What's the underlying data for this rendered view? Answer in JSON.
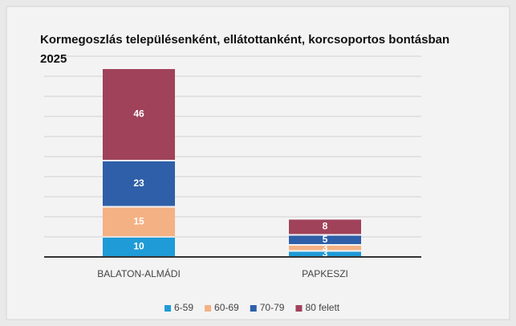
{
  "chart_data": {
    "type": "stacked-bar",
    "title": "Kormegoszlás településenként, ellátottanként, korcsoportos bontásban    2025",
    "categories": [
      "BALATON-ALMÁDI",
      "PAPKESZI"
    ],
    "series": [
      {
        "name": "6-59",
        "color": "#1f9bd7",
        "values": [
          10,
          3
        ]
      },
      {
        "name": "60-69",
        "color": "#f4b183",
        "values": [
          15,
          3
        ]
      },
      {
        "name": "70-79",
        "color": "#2e5fa8",
        "values": [
          23,
          5
        ]
      },
      {
        "name": "80 felett",
        "color": "#a0425a",
        "values": [
          46,
          8
        ]
      }
    ],
    "ylim": [
      0,
      100
    ],
    "yticks": [
      0,
      10,
      20,
      30,
      40,
      50,
      60,
      70,
      80,
      90,
      100
    ],
    "grid": true,
    "legend": "bottom"
  }
}
